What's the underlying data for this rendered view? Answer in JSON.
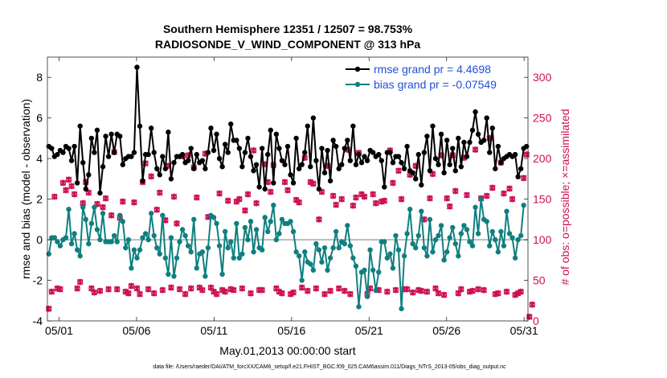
{
  "chart_data": {
    "type": "line",
    "title": "Southern Hemisphere 12351 / 12507 = 98.753%",
    "subtitle": "RADIOSONDE_V_WIND_COMPONENT @ 313 hPa",
    "xlabel": "May.01,2013 00:00:00 start",
    "ylabel": "rmse and bias (model - observation)",
    "y2label": "# of obs: o=possible; ×=assimilated",
    "xlim": [
      0.25,
      31.25
    ],
    "ylim": [
      -4,
      9
    ],
    "y2lim": [
      0,
      325
    ],
    "x_ticks": [
      1,
      6,
      11,
      16,
      21,
      26,
      31
    ],
    "x_tick_labels": [
      "05/01",
      "05/06",
      "05/11",
      "05/16",
      "05/21",
      "05/26",
      "05/31"
    ],
    "y_ticks": [
      -4,
      -2,
      0,
      2,
      4,
      6,
      8
    ],
    "y2_ticks": [
      0,
      50,
      100,
      150,
      200,
      250,
      300
    ],
    "zero_line": 0,
    "colors": {
      "rmse": "#000000",
      "bias": "#0f7f7f",
      "obs": "#cc1155",
      "legend_text": "#1f4fd6",
      "zero_line": "#bbbbbb"
    },
    "legend": {
      "location": "top-right",
      "entries": [
        "rmse grand pr = 4.4698",
        "bias grand pr = -0.07549"
      ]
    },
    "series": [
      {
        "name": "rmse grand pr = 4.4698",
        "axis": "left",
        "values": [
          4.6,
          4.5,
          4.1,
          4.2,
          4.4,
          4.3,
          4.6,
          4.5,
          3.9,
          4.6,
          2.8,
          5.6,
          3.8,
          2.5,
          3.2,
          5.0,
          4.3,
          5.4,
          2.3,
          3.6,
          5.1,
          4.1,
          5.2,
          4.3,
          5.2,
          5.1,
          3.7,
          4.0,
          4.1,
          4.1,
          4.3,
          8.5,
          5.6,
          2.9,
          4.2,
          4.2,
          5.5,
          4.3,
          3.5,
          3.2,
          4.1,
          3.5,
          5.3,
          3.0,
          3.8,
          4.1,
          4.1,
          4.2,
          3.8,
          3.9,
          4.5,
          3.5,
          4.2,
          3.8,
          3.9,
          3.5,
          4.3,
          5.5,
          4.4,
          5.2,
          4.0,
          3.6,
          4.7,
          4.3,
          5.7,
          4.9,
          4.9,
          4.5,
          3.6,
          4.3,
          5.0,
          4.1,
          3.4,
          3.7,
          2.6,
          4.5,
          2.5,
          4.2,
          5.4,
          2.8,
          5.2,
          4.5,
          3.9,
          3.7,
          4.6,
          3.2,
          2.8,
          5.0,
          3.5,
          3.7,
          4.3,
          5.6,
          3.6,
          6.0,
          3.9,
          2.5,
          4.5,
          3.3,
          4.4,
          2.9,
          4.9,
          4.6,
          3.5,
          3.7,
          4.5,
          4.9,
          3.9,
          5.6,
          3.7,
          4.2,
          3.8,
          4.1,
          3.9,
          4.4,
          4.3,
          4.1,
          4.2,
          3.9,
          2.6,
          4.3,
          4.3,
          3.8,
          4.1,
          4.1,
          3.8,
          3.5,
          4.6,
          3.4,
          3.3,
          3.0,
          4.2,
          2.7,
          4.3,
          5.1,
          3.4,
          5.6,
          4.0,
          3.7,
          5.2,
          3.3,
          4.9,
          3.7,
          4.5,
          3.4,
          5.0,
          3.6,
          4.8,
          4.1,
          4.8,
          5.4,
          6.3,
          5.2,
          4.8,
          4.9,
          6.0,
          4.3,
          5.5,
          3.5,
          4.6,
          3.8,
          4.0,
          4.1,
          4.2,
          4.1,
          4.2,
          3.1,
          3.5,
          4.5,
          4.6
        ]
      },
      {
        "name": "bias grand pr = -0.07549",
        "axis": "left",
        "values": [
          -0.7,
          0.1,
          0.1,
          -0.1,
          -0.3,
          0.0,
          0.1,
          1.5,
          -0.2,
          0.3,
          -0.5,
          -0.8,
          1.6,
          1.0,
          -0.2,
          0.8,
          1.6,
          0.5,
          0.0,
          1.3,
          -0.1,
          -0.1,
          -0.1,
          0.2,
          -0.1,
          1.2,
          0.9,
          -0.4,
          0.0,
          -1.4,
          -0.5,
          -0.9,
          -0.5,
          0.1,
          0.3,
          0.0,
          1.3,
          0.2,
          -0.4,
          -0.7,
          1.2,
          -0.9,
          -1.7,
          0.1,
          -1.8,
          -0.9,
          -0.1,
          0.5,
          0.2,
          -0.3,
          -0.6,
          1.0,
          -1.4,
          -0.7,
          -0.6,
          -1.8,
          -0.4,
          1.2,
          1.1,
          0.8,
          -0.3,
          -1.7,
          0.4,
          -0.4,
          -0.1,
          -0.9,
          0.8,
          -0.9,
          -0.7,
          0.6,
          0.0,
          0.9,
          -0.6,
          0.5,
          -0.4,
          -0.5,
          1.1,
          0.4,
          0.9,
          1.7,
          0.0,
          0.3,
          1.0,
          0.8,
          0.8,
          0.9,
          0.4,
          -0.6,
          -0.8,
          -2.0,
          -0.6,
          -1.1,
          -1.2,
          -1.5,
          -0.2,
          -0.5,
          -1.1,
          -0.4,
          -1.5,
          -0.9,
          -0.4,
          0.4,
          -0.4,
          -0.1,
          -0.2,
          0.7,
          -0.3,
          -0.9,
          -1.3,
          -3.3,
          -1.6,
          -1.5,
          -2.8,
          -0.5,
          -1.5,
          -2.5,
          -1.6,
          -0.1,
          -0.1,
          -0.9,
          -0.7,
          -1.4,
          0.2,
          -0.5,
          -3.4,
          -0.8,
          0.3,
          1.5,
          -0.2,
          -0.4,
          0.2,
          1.4,
          -0.4,
          -0.8,
          1.0,
          -0.6,
          0.0,
          0.2,
          0.7,
          -1.0,
          -0.6,
          0.1,
          0.6,
          -0.2,
          -0.8,
          0.3,
          0.7,
          0.5,
          -0.1,
          -0.3,
          1.6,
          0.3,
          2.0,
          1.0,
          0.9,
          -0.3,
          0.4,
          0.0,
          -0.6,
          0.4,
          -0.3,
          1.4,
          0.3,
          0.1,
          -0.9,
          0.0,
          0.2,
          1.7
        ]
      },
      {
        "name": "obs possible/assimilated",
        "axis": "right",
        "style": "markers",
        "values": [
          15,
          36,
          153,
          40,
          39,
          170,
          161,
          174,
          166,
          156,
          40,
          48,
          145,
          171,
          158,
          40,
          35,
          144,
          37,
          140,
          151,
          39,
          130,
          208,
          39,
          127,
          147,
          36,
          34,
          43,
          146,
          40,
          33,
          171,
          194,
          39,
          178,
          34,
          137,
          158,
          38,
          124,
          191,
          41,
          153,
          120,
          39,
          203,
          33,
          204,
          40,
          189,
          152,
          41,
          38,
          206,
          128,
          41,
          36,
          33,
          157,
          38,
          36,
          148,
          39,
          38,
          147,
          150,
          40,
          136,
          156,
          34,
          210,
          145,
          38,
          38,
          193,
          171,
          159,
          192,
          40,
          36,
          34,
          171,
          161,
          33,
          35,
          149,
          146,
          41,
          201,
          37,
          171,
          169,
          40,
          125,
          159,
          33,
          191,
          37,
          154,
          143,
          40,
          150,
          37,
          211,
          33,
          142,
          152,
          207,
          156,
          153,
          33,
          40,
          156,
          145,
          38,
          147,
          148,
          36,
          210,
          170,
          38,
          185,
          150,
          39,
          39,
          180,
          35,
          191,
          38,
          37,
          125,
          36,
          151,
          181,
          40,
          34,
          204,
          32,
          151,
          141,
          204,
          160,
          34,
          39,
          201,
          155,
          36,
          37,
          211,
          39,
          151,
          38,
          154,
          225,
          164,
          33,
          34,
          195,
          157,
          36,
          163,
          150,
          32,
          34,
          36,
          176,
          205,
          5,
          20
        ],
        "possible_values": [
          15,
          36,
          153,
          40,
          39,
          170,
          161,
          174,
          166,
          156,
          40,
          48,
          145,
          171,
          158,
          40,
          35,
          144,
          37,
          140,
          151,
          39,
          130,
          208,
          39,
          127,
          147,
          36,
          34,
          43,
          146,
          40,
          33,
          171,
          194,
          39,
          178,
          34,
          137,
          158,
          38,
          124,
          191,
          41,
          153,
          120,
          39,
          203,
          33,
          204,
          40,
          189,
          152,
          41,
          38,
          206,
          128,
          41,
          36,
          33,
          157,
          38,
          36,
          148,
          39,
          38,
          147,
          150,
          40,
          136,
          156,
          34,
          210,
          145,
          38,
          38,
          193,
          171,
          159,
          192,
          40,
          36,
          34,
          171,
          161,
          33,
          35,
          149,
          146,
          41,
          201,
          37,
          171,
          169,
          40,
          125,
          159,
          33,
          191,
          37,
          154,
          143,
          40,
          150,
          37,
          211,
          33,
          142,
          152,
          207,
          156,
          153,
          33,
          40,
          156,
          145,
          38,
          147,
          148,
          36,
          210,
          170,
          38,
          185,
          150,
          39,
          39,
          180,
          35,
          191,
          38,
          37,
          125,
          36,
          151,
          181,
          40,
          34,
          204,
          32,
          151,
          141,
          204,
          160,
          34,
          39,
          201,
          155,
          36,
          37,
          211,
          39,
          151,
          38,
          154,
          225,
          164,
          33,
          34,
          195,
          157,
          36,
          163,
          150,
          32,
          34,
          36,
          176,
          205,
          5,
          20
        ]
      }
    ]
  },
  "footer": {
    "file_path": "data file: /Users/raeder/DAI/ATM_forcXX/CAM6_setup/f.e21.FHIST_BGC.f09_025.CAM6assim.011/Diags_NTrS_2013-05/obs_diag_output.nc"
  }
}
